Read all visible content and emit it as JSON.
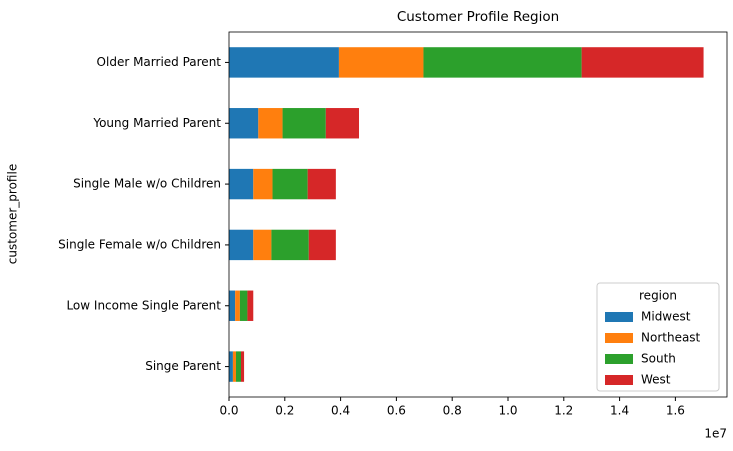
{
  "chart_data": {
    "type": "barh_stacked",
    "title": "Customer Profile Region",
    "ylabel": "customer_profile",
    "categories": [
      "Older Married Parent",
      "Young Married Parent",
      "Single Male w/o Children",
      "Single Female w/o Children",
      "Low Income Single Parent",
      "Singe Parent"
    ],
    "series": [
      {
        "name": "Midwest",
        "color": "#1f77b4",
        "values": [
          3940000,
          1050000,
          870000,
          870000,
          220000,
          140000
        ]
      },
      {
        "name": "Northeast",
        "color": "#ff7f0e",
        "values": [
          3030000,
          870000,
          690000,
          650000,
          170000,
          110000
        ]
      },
      {
        "name": "South",
        "color": "#2ca02c",
        "values": [
          5670000,
          1550000,
          1260000,
          1340000,
          270000,
          180000
        ]
      },
      {
        "name": "West",
        "color": "#d62728",
        "values": [
          4370000,
          1190000,
          1010000,
          970000,
          210000,
          110000
        ]
      }
    ],
    "xlim": [
      0,
      17850000
    ],
    "xticks": [
      {
        "value": 0,
        "label": "0.0"
      },
      {
        "value": 2000000,
        "label": "0.2"
      },
      {
        "value": 4000000,
        "label": "0.4"
      },
      {
        "value": 6000000,
        "label": "0.6"
      },
      {
        "value": 8000000,
        "label": "0.8"
      },
      {
        "value": 10000000,
        "label": "1.0"
      },
      {
        "value": 12000000,
        "label": "1.2"
      },
      {
        "value": 14000000,
        "label": "1.4"
      },
      {
        "value": 16000000,
        "label": "1.6"
      }
    ],
    "x_offset_label": "1e7",
    "legend_title": "region",
    "legend": "lower right"
  }
}
